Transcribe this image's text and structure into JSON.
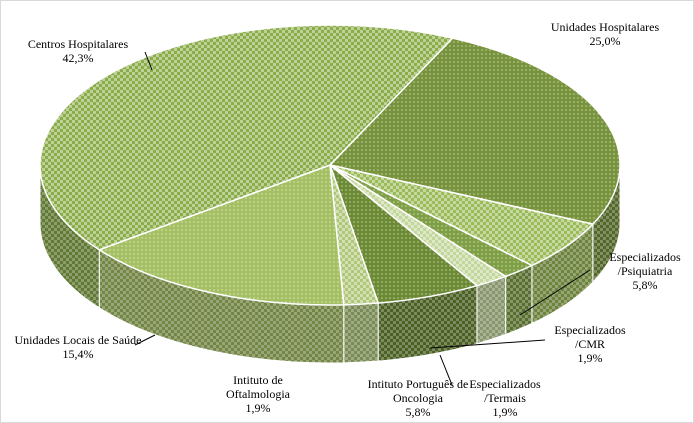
{
  "chart_data": {
    "type": "pie3d",
    "categories": [
      "Unidades Hospitalares",
      "Especializados /Psiquiatria",
      "Especializados /CMR",
      "Especializados /Termais",
      "Intituto Português de Oncologia",
      "Intituto de Oftalmologia",
      "Unidades Locais de Saúde",
      "Centros Hospitalares"
    ],
    "values": [
      25.0,
      5.8,
      1.9,
      1.9,
      5.8,
      1.9,
      15.4,
      42.3
    ],
    "value_labels": [
      "25,0%",
      "5,8%",
      "1,9%",
      "1,9%",
      "5,8%",
      "1,9%",
      "15,4%",
      "42,3%"
    ],
    "colors": [
      "#77933c",
      "#9bbb59",
      "#7f9f45",
      "#c3d69b",
      "#6b8a33",
      "#b0c77a",
      "#a4c063",
      "#8aad4a"
    ]
  }
}
